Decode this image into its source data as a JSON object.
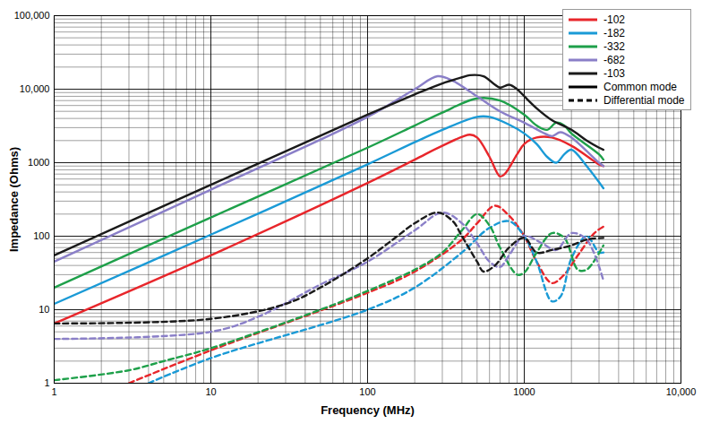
{
  "chart_data": {
    "type": "line",
    "x_label": "Frequency (MHz)",
    "y_label": "Impedance (Ohms)",
    "log": true,
    "grid": true,
    "legend": "top-right",
    "xlim": [
      1,
      10000
    ],
    "xticks": [
      1,
      10,
      100,
      1000,
      {
        "value": 10000,
        "label": "10,000"
      }
    ],
    "ylim": [
      1,
      100000
    ],
    "yticks": [
      1,
      10,
      100,
      1000,
      {
        "value": 10000,
        "label": "10,000"
      },
      {
        "value": 100000,
        "label": "100,000"
      }
    ],
    "line_styles": [
      {
        "name": "Common mode",
        "line_style": "solid"
      },
      {
        "name": "Differential mode",
        "line_style": "dashed"
      }
    ],
    "series": [
      {
        "name": "-102",
        "color": "#e8262b",
        "line_style": "solid",
        "x": [
          1,
          10,
          100,
          200,
          300,
          450,
          500,
          600,
          700,
          750,
          900,
          1000,
          1200,
          1500,
          2000,
          3000,
          3200
        ],
        "values": [
          6.5,
          55,
          530,
          1100,
          1700,
          2400,
          2200,
          1200,
          650,
          700,
          1300,
          1800,
          2200,
          2200,
          1700,
          950,
          900
        ]
      },
      {
        "name": "-182",
        "color": "#1a9ad6",
        "line_style": "solid",
        "x": [
          1,
          10,
          100,
          200,
          300,
          500,
          600,
          800,
          1000,
          1200,
          1400,
          1600,
          1800,
          2000,
          2500,
          3200
        ],
        "values": [
          12,
          105,
          950,
          1900,
          2800,
          4200,
          4200,
          3300,
          2500,
          1800,
          1200,
          1000,
          1300,
          1500,
          900,
          450
        ]
      },
      {
        "name": "-332",
        "color": "#1ea04a",
        "line_style": "solid",
        "x": [
          1,
          10,
          100,
          200,
          300,
          500,
          700,
          1000,
          1200,
          1400,
          1600,
          1800,
          2000,
          3000,
          3200
        ],
        "values": [
          20,
          180,
          1600,
          3200,
          4800,
          7500,
          7000,
          4500,
          3200,
          2800,
          3500,
          3200,
          2500,
          1300,
          1100
        ]
      },
      {
        "name": "-682",
        "color": "#8a7fc8",
        "line_style": "solid",
        "x": [
          1,
          10,
          100,
          200,
          280,
          350,
          500,
          700,
          1000,
          1300,
          1500,
          1700,
          2000,
          3000,
          3200
        ],
        "values": [
          45,
          430,
          4200,
          10000,
          15000,
          13000,
          8000,
          5000,
          3500,
          2600,
          2300,
          2600,
          2200,
          1000,
          900
        ]
      },
      {
        "name": "-103",
        "color": "#1a1a1a",
        "line_style": "solid",
        "x": [
          1,
          10,
          100,
          200,
          300,
          400,
          450,
          550,
          650,
          700,
          800,
          900,
          1000,
          1200,
          1500,
          2000,
          2500,
          3000,
          3200
        ],
        "values": [
          55,
          500,
          4500,
          8500,
          12000,
          14500,
          15500,
          15000,
          11500,
          10500,
          11500,
          10000,
          8000,
          5500,
          3800,
          2800,
          2000,
          1600,
          1500
        ]
      },
      {
        "name": "-102",
        "color": "#e8262b",
        "line_style": "dashed",
        "x": [
          3,
          10,
          100,
          200,
          400,
          500,
          650,
          800,
          1000,
          1200,
          1500,
          1800,
          2200,
          2800,
          3200
        ],
        "values": [
          1,
          2.8,
          17,
          33,
          90,
          150,
          260,
          190,
          100,
          45,
          23,
          30,
          55,
          110,
          135
        ]
      },
      {
        "name": "-182",
        "color": "#1a9ad6",
        "line_style": "dashed",
        "x": [
          4,
          10,
          100,
          200,
          400,
          600,
          800,
          1000,
          1200,
          1500,
          1700,
          2000,
          2500,
          3000,
          3200
        ],
        "values": [
          1,
          2.2,
          10,
          20,
          60,
          130,
          160,
          100,
          45,
          13,
          15,
          50,
          100,
          60,
          60
        ]
      },
      {
        "name": "-332",
        "color": "#1ea04a",
        "line_style": "dashed",
        "x": [
          1,
          3,
          5,
          10,
          50,
          100,
          200,
          300,
          400,
          500,
          600,
          700,
          900,
          1000,
          1200,
          1500,
          1800,
          2200,
          2500,
          3200
        ],
        "values": [
          1.1,
          1.5,
          2,
          3,
          10,
          18,
          35,
          60,
          120,
          200,
          140,
          70,
          30,
          32,
          60,
          110,
          95,
          35,
          35,
          75
        ]
      },
      {
        "name": "-682",
        "color": "#8a7fc8",
        "line_style": "dashed",
        "x": [
          1,
          10,
          20,
          50,
          100,
          200,
          300,
          400,
          500,
          600,
          700,
          800,
          1000,
          1300,
          1600,
          2000,
          2500,
          3200
        ],
        "values": [
          4,
          5,
          8,
          22,
          45,
          120,
          210,
          150,
          80,
          45,
          38,
          55,
          100,
          80,
          65,
          110,
          90,
          25
        ]
      },
      {
        "name": "-103",
        "color": "#1a1a1a",
        "line_style": "dashed",
        "x": [
          1,
          10,
          30,
          50,
          100,
          150,
          200,
          280,
          350,
          400,
          500,
          550,
          650,
          800,
          1000,
          1200,
          1500,
          2000,
          2500,
          3200
        ],
        "values": [
          6.5,
          7.5,
          12,
          20,
          50,
          95,
          150,
          210,
          160,
          100,
          45,
          33,
          40,
          70,
          95,
          60,
          65,
          75,
          90,
          95
        ]
      }
    ]
  }
}
